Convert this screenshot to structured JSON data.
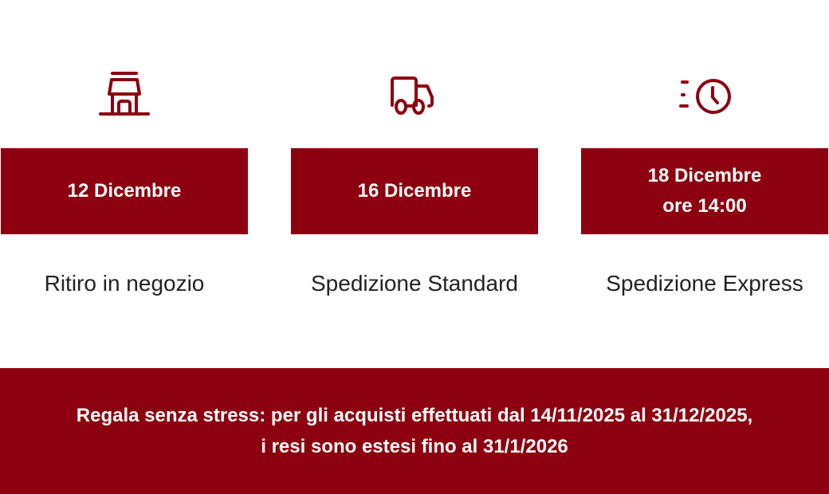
{
  "accent_color": "#8c0010",
  "options": [
    {
      "icon": "store-icon",
      "date_line1": "12 Dicembre",
      "date_line2": "",
      "label": "Ritiro in negozio"
    },
    {
      "icon": "truck-icon",
      "date_line1": "16 Dicembre",
      "date_line2": "",
      "label": "Spedizione Standard"
    },
    {
      "icon": "fast-clock-icon",
      "date_line1": "18 Dicembre",
      "date_line2": "ore 14:00",
      "label": "Spedizione Express"
    }
  ],
  "banner": {
    "line1": "Regala senza stress: per gli acquisti effettuati dal 14/11/2025 al 31/12/2025,",
    "line2": "i resi sono estesi fino al 31/1/2026"
  }
}
